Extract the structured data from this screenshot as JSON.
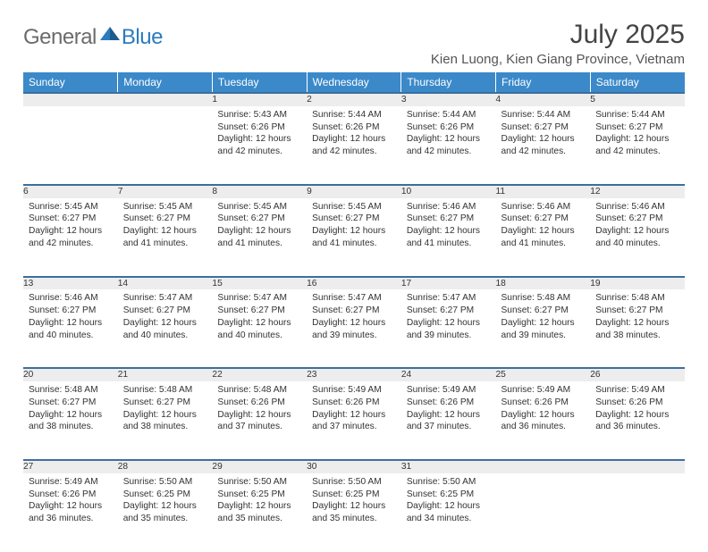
{
  "brand": {
    "part1": "General",
    "part2": "Blue"
  },
  "colors": {
    "header_bg": "#3b89c9",
    "header_border": "#3b6f9e",
    "daynum_bg": "#ededed",
    "text": "#333333",
    "logo_gray": "#6b6b6b",
    "logo_blue": "#2b7bbf"
  },
  "title": "July 2025",
  "location": "Kien Luong, Kien Giang Province, Vietnam",
  "weekdays": [
    "Sunday",
    "Monday",
    "Tuesday",
    "Wednesday",
    "Thursday",
    "Friday",
    "Saturday"
  ],
  "weeks": [
    [
      null,
      null,
      {
        "n": "1",
        "sr": "5:43 AM",
        "ss": "6:26 PM",
        "dl": "12 hours and 42 minutes."
      },
      {
        "n": "2",
        "sr": "5:44 AM",
        "ss": "6:26 PM",
        "dl": "12 hours and 42 minutes."
      },
      {
        "n": "3",
        "sr": "5:44 AM",
        "ss": "6:26 PM",
        "dl": "12 hours and 42 minutes."
      },
      {
        "n": "4",
        "sr": "5:44 AM",
        "ss": "6:27 PM",
        "dl": "12 hours and 42 minutes."
      },
      {
        "n": "5",
        "sr": "5:44 AM",
        "ss": "6:27 PM",
        "dl": "12 hours and 42 minutes."
      }
    ],
    [
      {
        "n": "6",
        "sr": "5:45 AM",
        "ss": "6:27 PM",
        "dl": "12 hours and 42 minutes."
      },
      {
        "n": "7",
        "sr": "5:45 AM",
        "ss": "6:27 PM",
        "dl": "12 hours and 41 minutes."
      },
      {
        "n": "8",
        "sr": "5:45 AM",
        "ss": "6:27 PM",
        "dl": "12 hours and 41 minutes."
      },
      {
        "n": "9",
        "sr": "5:45 AM",
        "ss": "6:27 PM",
        "dl": "12 hours and 41 minutes."
      },
      {
        "n": "10",
        "sr": "5:46 AM",
        "ss": "6:27 PM",
        "dl": "12 hours and 41 minutes."
      },
      {
        "n": "11",
        "sr": "5:46 AM",
        "ss": "6:27 PM",
        "dl": "12 hours and 41 minutes."
      },
      {
        "n": "12",
        "sr": "5:46 AM",
        "ss": "6:27 PM",
        "dl": "12 hours and 40 minutes."
      }
    ],
    [
      {
        "n": "13",
        "sr": "5:46 AM",
        "ss": "6:27 PM",
        "dl": "12 hours and 40 minutes."
      },
      {
        "n": "14",
        "sr": "5:47 AM",
        "ss": "6:27 PM",
        "dl": "12 hours and 40 minutes."
      },
      {
        "n": "15",
        "sr": "5:47 AM",
        "ss": "6:27 PM",
        "dl": "12 hours and 40 minutes."
      },
      {
        "n": "16",
        "sr": "5:47 AM",
        "ss": "6:27 PM",
        "dl": "12 hours and 39 minutes."
      },
      {
        "n": "17",
        "sr": "5:47 AM",
        "ss": "6:27 PM",
        "dl": "12 hours and 39 minutes."
      },
      {
        "n": "18",
        "sr": "5:48 AM",
        "ss": "6:27 PM",
        "dl": "12 hours and 39 minutes."
      },
      {
        "n": "19",
        "sr": "5:48 AM",
        "ss": "6:27 PM",
        "dl": "12 hours and 38 minutes."
      }
    ],
    [
      {
        "n": "20",
        "sr": "5:48 AM",
        "ss": "6:27 PM",
        "dl": "12 hours and 38 minutes."
      },
      {
        "n": "21",
        "sr": "5:48 AM",
        "ss": "6:27 PM",
        "dl": "12 hours and 38 minutes."
      },
      {
        "n": "22",
        "sr": "5:48 AM",
        "ss": "6:26 PM",
        "dl": "12 hours and 37 minutes."
      },
      {
        "n": "23",
        "sr": "5:49 AM",
        "ss": "6:26 PM",
        "dl": "12 hours and 37 minutes."
      },
      {
        "n": "24",
        "sr": "5:49 AM",
        "ss": "6:26 PM",
        "dl": "12 hours and 37 minutes."
      },
      {
        "n": "25",
        "sr": "5:49 AM",
        "ss": "6:26 PM",
        "dl": "12 hours and 36 minutes."
      },
      {
        "n": "26",
        "sr": "5:49 AM",
        "ss": "6:26 PM",
        "dl": "12 hours and 36 minutes."
      }
    ],
    [
      {
        "n": "27",
        "sr": "5:49 AM",
        "ss": "6:26 PM",
        "dl": "12 hours and 36 minutes."
      },
      {
        "n": "28",
        "sr": "5:50 AM",
        "ss": "6:25 PM",
        "dl": "12 hours and 35 minutes."
      },
      {
        "n": "29",
        "sr": "5:50 AM",
        "ss": "6:25 PM",
        "dl": "12 hours and 35 minutes."
      },
      {
        "n": "30",
        "sr": "5:50 AM",
        "ss": "6:25 PM",
        "dl": "12 hours and 35 minutes."
      },
      {
        "n": "31",
        "sr": "5:50 AM",
        "ss": "6:25 PM",
        "dl": "12 hours and 34 minutes."
      },
      null,
      null
    ]
  ],
  "labels": {
    "sunrise": "Sunrise: ",
    "sunset": "Sunset: ",
    "daylight": "Daylight: "
  }
}
